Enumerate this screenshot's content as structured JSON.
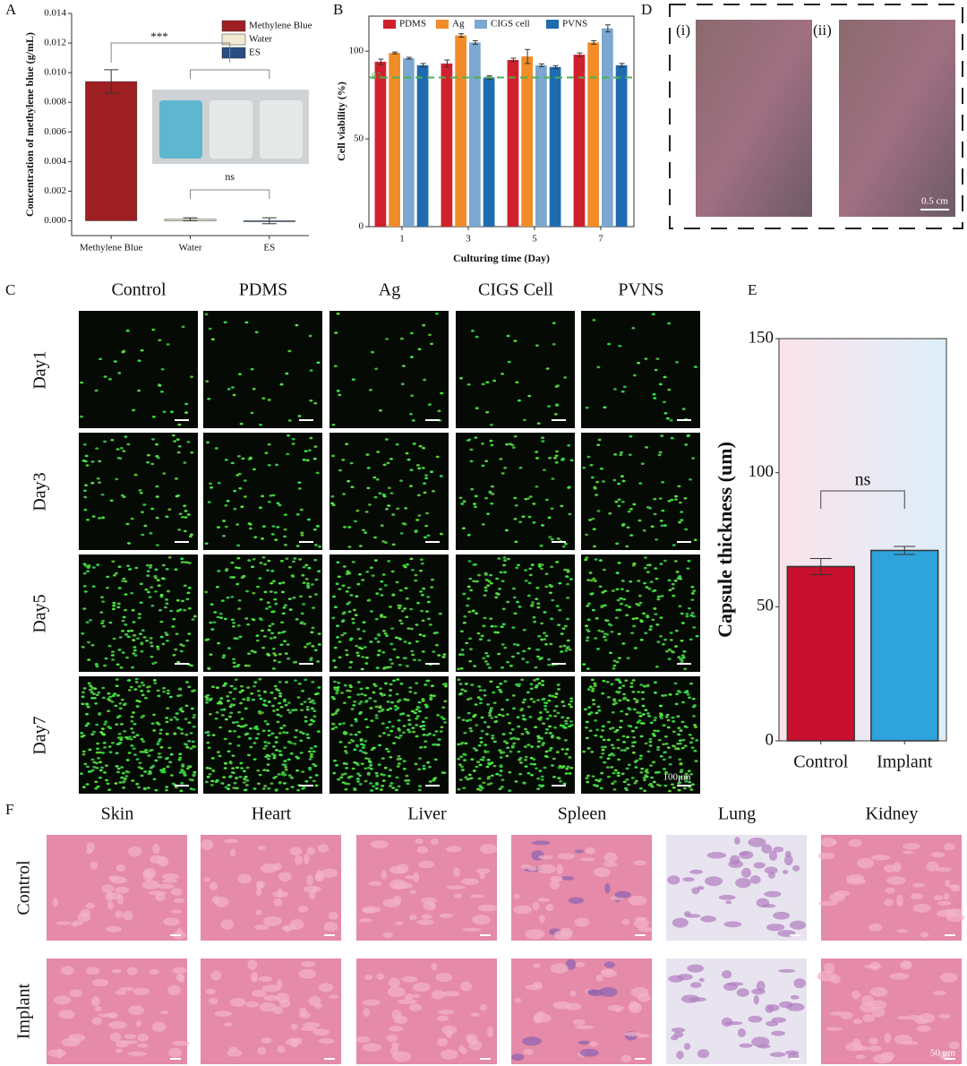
{
  "chart_data": [
    {
      "type": "bar",
      "label": "A",
      "ylabel": "Concentration of methylene blue (g/mL)",
      "categories": [
        "Methylene Blue",
        "Water",
        "ES"
      ],
      "values": [
        0.0094,
        0.0001,
        0.0
      ],
      "errors": [
        0.0008,
        0.0001,
        0.0002
      ],
      "colors": [
        "#9e1f22",
        "#f0ead2",
        "#2a4e82"
      ],
      "ylim": [
        -0.001,
        0.014
      ],
      "yticks": [
        {
          "value": 0,
          "label": "0.000"
        },
        {
          "value": 0.002,
          "label": "0.002"
        },
        {
          "value": 0.004,
          "label": "0.004"
        },
        {
          "value": 0.006,
          "label": "0.006"
        },
        {
          "value": 0.008,
          "label": "0.008"
        },
        {
          "value": 0.01,
          "label": "0.010"
        },
        {
          "value": 0.012,
          "label": "0.012"
        },
        {
          "value": 0.014,
          "label": "0.014"
        }
      ],
      "legend": "upper right",
      "annotations": [
        "***",
        "ns"
      ]
    },
    {
      "type": "bar",
      "label": "B",
      "ylabel": "Cell viability (%)",
      "xlabel": "Culturing time (Day)",
      "categories": [
        "1",
        "3",
        "5",
        "7"
      ],
      "series": [
        {
          "name": "PDMS",
          "color": "#d0202e",
          "values": [
            94,
            93,
            95,
            98
          ],
          "errors": [
            1.5,
            2,
            1,
            1
          ]
        },
        {
          "name": "Ag",
          "color": "#f28c28",
          "values": [
            99,
            109,
            97,
            105
          ],
          "errors": [
            0.5,
            1,
            4,
            1
          ]
        },
        {
          "name": "CIGS cell",
          "color": "#7ba7d0",
          "values": [
            96,
            105,
            92,
            113
          ],
          "errors": [
            0.5,
            1,
            0.8,
            2
          ]
        },
        {
          "name": "PVNS",
          "color": "#1f6bb0",
          "values": [
            92,
            85,
            91,
            92
          ],
          "errors": [
            1,
            1,
            0.8,
            1
          ]
        }
      ],
      "ylim": [
        0,
        120
      ],
      "yticks": [
        0,
        50,
        100
      ],
      "hline": {
        "value": 85,
        "color": "#4caf50"
      },
      "legend": "top"
    },
    {
      "type": "bar",
      "label": "E",
      "ylabel": "Capsule thickness (um)",
      "categories": [
        "Control",
        "Implant"
      ],
      "values": [
        65,
        71
      ],
      "errors": [
        3,
        1.5
      ],
      "colors": [
        "#c8102e",
        "#2ea3dc"
      ],
      "ylim": [
        0,
        150
      ],
      "yticks": [
        0,
        50,
        100,
        150
      ],
      "annotations": [
        "ns"
      ]
    }
  ],
  "fluorescence": {
    "label": "C",
    "columns": [
      "Control",
      "PDMS",
      "Ag",
      "CIGS Cell",
      "PVNS"
    ],
    "rows": [
      "Day1",
      "Day3",
      "Day5",
      "Day7"
    ],
    "scale": "100μm"
  },
  "photos": {
    "label": "D",
    "panels": [
      "(i)",
      "(ii)"
    ],
    "scale": "0.5 cm"
  },
  "histology": {
    "label": "F",
    "columns": [
      "Skin",
      "Heart",
      "Liver",
      "Spleen",
      "Lung",
      "Kidney"
    ],
    "rows": [
      "Control",
      "Implant"
    ],
    "scale": "50 μm"
  }
}
